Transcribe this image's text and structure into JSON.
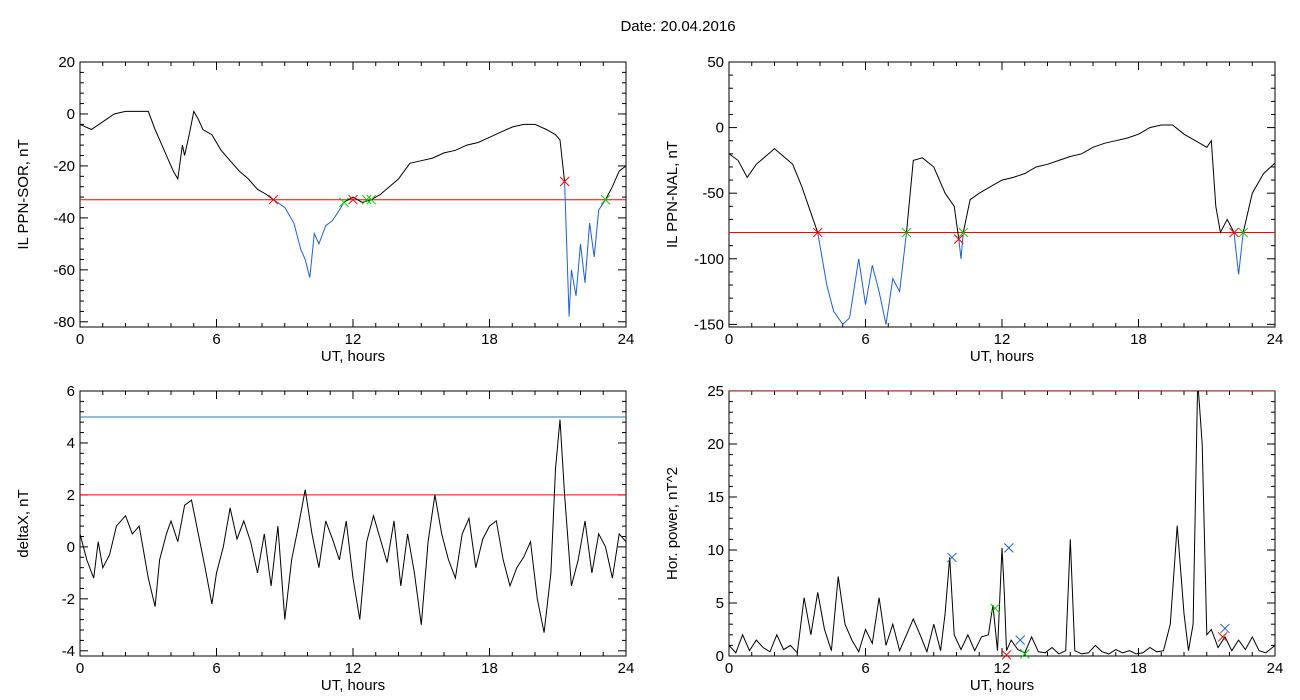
{
  "page": {
    "title": "Date:  20.04.2016"
  },
  "chart_data": [
    {
      "id": "p1",
      "type": "line",
      "xlabel": "UT, hours",
      "ylabel": "IL PPN-SOR, nT",
      "xlim": [
        0,
        24
      ],
      "ylim": [
        -82,
        20
      ],
      "xticks": [
        0,
        6,
        12,
        18,
        24
      ],
      "yticks": [
        -80,
        -60,
        -40,
        -20,
        0,
        20
      ],
      "hlines": [
        {
          "y": -33,
          "color": "#ff0000"
        }
      ],
      "series": [
        {
          "color": "#000000",
          "x": [
            0,
            0.5,
            1,
            1.5,
            2,
            2.5,
            3,
            3.3,
            3.6,
            3.9,
            4.1,
            4.3,
            4.5,
            4.6,
            4.8,
            5,
            5.2,
            5.4,
            5.8,
            6.2,
            6.6,
            7,
            7.4,
            7.8,
            8.2,
            8.5
          ],
          "y": [
            -4,
            -6,
            -3,
            0,
            1,
            1,
            1,
            -6,
            -12,
            -18,
            -22,
            -25,
            -12,
            -16,
            -8,
            1,
            -2,
            -6,
            -8,
            -14,
            -18,
            -22,
            -25,
            -29,
            -31,
            -33
          ]
        },
        {
          "color": "#1f5fd0",
          "x": [
            8.5,
            9,
            9.4,
            9.7,
            9.9,
            10.1,
            10.3,
            10.5,
            10.8,
            11.1,
            11.4,
            11.6
          ],
          "y": [
            -33,
            -36,
            -42,
            -52,
            -56,
            -63,
            -46,
            -50,
            -43,
            -41,
            -37,
            -34
          ]
        },
        {
          "color": "#000000",
          "x": [
            11.6,
            12,
            12.4,
            12.8,
            13.2,
            13.6,
            14,
            14.5,
            15,
            15.5,
            16,
            16.5,
            17,
            17.5,
            18,
            18.5,
            19,
            19.5,
            20,
            20.5,
            20.9,
            21.1,
            21.3
          ],
          "y": [
            -34,
            -32,
            -34,
            -33,
            -31,
            -28,
            -25,
            -19,
            -18,
            -17,
            -15,
            -14,
            -12,
            -11,
            -9,
            -7,
            -5,
            -4,
            -4,
            -6,
            -8,
            -10,
            -26
          ]
        },
        {
          "color": "#1f5fd0",
          "x": [
            21.3,
            21.5,
            21.6,
            21.8,
            22,
            22.2,
            22.4,
            22.6,
            22.8,
            23.1
          ],
          "y": [
            -26,
            -78,
            -60,
            -70,
            -50,
            -65,
            -42,
            -55,
            -37,
            -33
          ]
        },
        {
          "color": "#000000",
          "x": [
            23.1,
            23.4,
            23.7,
            24
          ],
          "y": [
            -33,
            -28,
            -22,
            -20
          ]
        }
      ],
      "markers": [
        {
          "x": 8.5,
          "y": -33,
          "color": "#ff0000"
        },
        {
          "x": 12.0,
          "y": -33,
          "color": "#ff0000"
        },
        {
          "x": 11.6,
          "y": -34,
          "color": "#00cc00"
        },
        {
          "x": 12.6,
          "y": -33,
          "color": "#00cc00"
        },
        {
          "x": 12.8,
          "y": -33,
          "color": "#00cc00"
        },
        {
          "x": 21.3,
          "y": -26,
          "color": "#ff0000"
        },
        {
          "x": 23.1,
          "y": -33,
          "color": "#00cc00"
        }
      ]
    },
    {
      "id": "p2",
      "type": "line",
      "xlabel": "UT, hours",
      "ylabel": "IL PPN-NAL, nT",
      "xlim": [
        0,
        24
      ],
      "ylim": [
        -152,
        50
      ],
      "xticks": [
        0,
        6,
        12,
        18,
        24
      ],
      "yticks": [
        -150,
        -100,
        -50,
        0,
        50
      ],
      "hlines": [
        {
          "y": -80,
          "color": "#ff0000"
        }
      ],
      "series": [
        {
          "color": "#000000",
          "x": [
            0,
            0.4,
            0.8,
            1.2,
            1.6,
            2,
            2.4,
            2.8,
            3.2,
            3.6,
            3.9
          ],
          "y": [
            -20,
            -25,
            -38,
            -28,
            -22,
            -16,
            -22,
            -28,
            -45,
            -65,
            -80
          ]
        },
        {
          "color": "#1f5fd0",
          "x": [
            3.9,
            4.3,
            4.6,
            5,
            5.3,
            5.7,
            6,
            6.3,
            6.6,
            6.9,
            7.2,
            7.5,
            7.8
          ],
          "y": [
            -80,
            -120,
            -140,
            -150,
            -145,
            -100,
            -135,
            -105,
            -125,
            -150,
            -115,
            -125,
            -80
          ]
        },
        {
          "color": "#000000",
          "x": [
            7.8,
            8.1,
            8.5,
            9,
            9.5,
            9.9,
            10.1
          ],
          "y": [
            -80,
            -25,
            -23,
            -30,
            -50,
            -60,
            -85
          ]
        },
        {
          "color": "#1f5fd0",
          "x": [
            10.1,
            10.2,
            10.3
          ],
          "y": [
            -85,
            -100,
            -80
          ]
        },
        {
          "color": "#000000",
          "x": [
            10.3,
            10.6,
            11,
            11.5,
            12,
            12.5,
            13,
            13.5,
            14,
            14.5,
            15,
            15.5,
            16,
            16.5,
            17,
            17.5,
            18,
            18.5,
            19,
            19.5,
            20,
            20.5,
            21,
            21.2,
            21.4,
            21.6,
            21.9,
            22.2
          ],
          "y": [
            -80,
            -55,
            -50,
            -45,
            -40,
            -38,
            -35,
            -30,
            -28,
            -25,
            -22,
            -20,
            -15,
            -12,
            -10,
            -8,
            -5,
            0,
            2,
            2,
            -5,
            -10,
            -15,
            -10,
            -60,
            -80,
            -70,
            -80
          ]
        },
        {
          "color": "#1f5fd0",
          "x": [
            22.2,
            22.4,
            22.6
          ],
          "y": [
            -80,
            -112,
            -80
          ]
        },
        {
          "color": "#000000",
          "x": [
            22.6,
            23,
            23.5,
            24
          ],
          "y": [
            -80,
            -50,
            -35,
            -27
          ]
        }
      ],
      "markers": [
        {
          "x": 3.9,
          "y": -80,
          "color": "#ff0000"
        },
        {
          "x": 7.8,
          "y": -80,
          "color": "#00cc00"
        },
        {
          "x": 10.1,
          "y": -85,
          "color": "#ff0000"
        },
        {
          "x": 10.3,
          "y": -80,
          "color": "#00cc00"
        },
        {
          "x": 22.2,
          "y": -80,
          "color": "#ff0000"
        },
        {
          "x": 22.6,
          "y": -80,
          "color": "#00cc00"
        }
      ]
    },
    {
      "id": "p3",
      "type": "line",
      "xlabel": "UT, hours",
      "ylabel": "deltaX, nT",
      "xlim": [
        0,
        24
      ],
      "ylim": [
        -4.2,
        6
      ],
      "xticks": [
        0,
        6,
        12,
        18,
        24
      ],
      "yticks": [
        -4,
        -2,
        0,
        2,
        4,
        6
      ],
      "hlines": [
        {
          "y": 5,
          "color": "#1f7ea8"
        },
        {
          "y": 2,
          "color": "#ff0000"
        }
      ],
      "series": [
        {
          "color": "#000000",
          "x": [
            0,
            0.3,
            0.6,
            0.8,
            1,
            1.3,
            1.6,
            2,
            2.3,
            2.6,
            3,
            3.3,
            3.5,
            3.8,
            4,
            4.3,
            4.6,
            4.9,
            5.2,
            5.5,
            5.8,
            6,
            6.3,
            6.6,
            6.9,
            7.2,
            7.5,
            7.8,
            8.1,
            8.4,
            8.7,
            9,
            9.3,
            9.6,
            9.9,
            10.2,
            10.5,
            10.8,
            11.1,
            11.4,
            11.7,
            12,
            12.3,
            12.6,
            12.9,
            13.2,
            13.5,
            13.8,
            14.1,
            14.4,
            14.7,
            15,
            15.3,
            15.6,
            15.9,
            16.2,
            16.5,
            16.8,
            17.1,
            17.4,
            17.7,
            18,
            18.3,
            18.6,
            18.9,
            19.2,
            19.5,
            19.8,
            20.1,
            20.4,
            20.7,
            20.9,
            21.1,
            21.3,
            21.6,
            21.9,
            22.2,
            22.5,
            22.8,
            23.1,
            23.4,
            23.7,
            24
          ],
          "y": [
            0.5,
            -0.5,
            -1.2,
            0.2,
            -0.8,
            -0.3,
            0.8,
            1.2,
            0.5,
            0.8,
            -1.2,
            -2.3,
            -0.5,
            0.5,
            1,
            0.2,
            1.6,
            1.8,
            0.5,
            -0.8,
            -2.2,
            -1,
            0,
            1.5,
            0.3,
            1,
            0.2,
            -1,
            0.5,
            -1.5,
            0.8,
            -2.8,
            -0.5,
            0.8,
            2.2,
            0.5,
            -0.8,
            1,
            0.3,
            -0.5,
            1,
            -1.2,
            -2.8,
            0.2,
            1.2,
            0.3,
            -0.6,
            1,
            -1.5,
            0.5,
            -1,
            -3,
            0.2,
            2,
            0.5,
            -0.5,
            -1.2,
            0.5,
            1.1,
            -0.8,
            0.3,
            0.8,
            1,
            -0.5,
            -1.5,
            -0.8,
            -0.4,
            0.2,
            -2,
            -3.3,
            -1,
            3,
            4.9,
            2,
            -1.5,
            -0.5,
            1,
            -1,
            0.5,
            0,
            -1.2,
            0.5,
            0.2
          ]
        }
      ],
      "markers": []
    },
    {
      "id": "p4",
      "type": "line",
      "xlabel": "UT, hours",
      "ylabel": "Hor. power, nT^2",
      "xlim": [
        0,
        24
      ],
      "ylim": [
        0,
        25
      ],
      "xticks": [
        0,
        6,
        12,
        18,
        24
      ],
      "yticks": [
        0,
        5,
        10,
        15,
        20,
        25
      ],
      "hlines": [
        {
          "y": 25,
          "color": "#ff0000"
        }
      ],
      "series": [
        {
          "color": "#000000",
          "x": [
            0,
            0.3,
            0.6,
            0.9,
            1.2,
            1.5,
            1.8,
            2.1,
            2.4,
            2.7,
            3,
            3.3,
            3.6,
            3.9,
            4.2,
            4.5,
            4.8,
            5.1,
            5.4,
            5.7,
            6,
            6.3,
            6.6,
            6.9,
            7.2,
            7.5,
            7.8,
            8.1,
            8.4,
            8.7,
            9,
            9.3,
            9.5,
            9.7,
            9.9,
            10.2,
            10.5,
            10.8,
            11.1,
            11.4,
            11.6,
            11.8,
            12,
            12.1,
            12.2,
            12.4,
            12.7,
            13,
            13.3,
            13.6,
            13.9,
            14.2,
            14.5,
            14.8,
            15,
            15.2,
            15.5,
            15.8,
            16.1,
            16.4,
            16.7,
            17,
            17.3,
            17.6,
            17.9,
            18.2,
            18.5,
            18.8,
            19.1,
            19.4,
            19.7,
            20,
            20.2,
            20.4,
            20.6,
            20.8,
            21,
            21.2,
            21.5,
            21.8,
            22.1,
            22.4,
            22.7,
            23,
            23.3,
            23.6,
            24
          ],
          "y": [
            1,
            0.3,
            2,
            0.5,
            1.5,
            0.8,
            0.4,
            2,
            0.6,
            1,
            0.3,
            5.5,
            2,
            6,
            2.5,
            0.5,
            7.5,
            3,
            1.5,
            0.4,
            2.5,
            1.2,
            5.5,
            1,
            3,
            0.5,
            2,
            3.5,
            2,
            0.4,
            3,
            0.5,
            4,
            9.3,
            2,
            0.6,
            2,
            0.5,
            1.8,
            2,
            4.8,
            0.5,
            10.2,
            6,
            0.5,
            1.5,
            0.6,
            0.3,
            1.8,
            0.4,
            0.3,
            0.8,
            0.2,
            0.5,
            11,
            0.5,
            0.2,
            0.3,
            1,
            0.4,
            0.2,
            0.6,
            0.3,
            0.5,
            0.2,
            0.3,
            0.8,
            0.4,
            0.5,
            3,
            12.3,
            4,
            0.5,
            3,
            26,
            20,
            2,
            2.5,
            0.8,
            1.8,
            0.5,
            1.5,
            0.6,
            1.8,
            0.5,
            0.3,
            1
          ]
        }
      ],
      "markers": [
        {
          "x": 9.8,
          "y": 9.3,
          "color": "#1f5fd0"
        },
        {
          "x": 12.3,
          "y": 10.2,
          "color": "#1f5fd0"
        },
        {
          "x": 12.8,
          "y": 1.5,
          "color": "#1f5fd0"
        },
        {
          "x": 21.8,
          "y": 2.6,
          "color": "#1f5fd0"
        },
        {
          "x": 11.7,
          "y": 4.5,
          "color": "#00cc00"
        },
        {
          "x": 13.0,
          "y": 0.2,
          "color": "#00cc00"
        },
        {
          "x": 12.2,
          "y": 0.1,
          "color": "#ff0000"
        },
        {
          "x": 21.7,
          "y": 1.8,
          "color": "#ff0000"
        }
      ]
    }
  ]
}
